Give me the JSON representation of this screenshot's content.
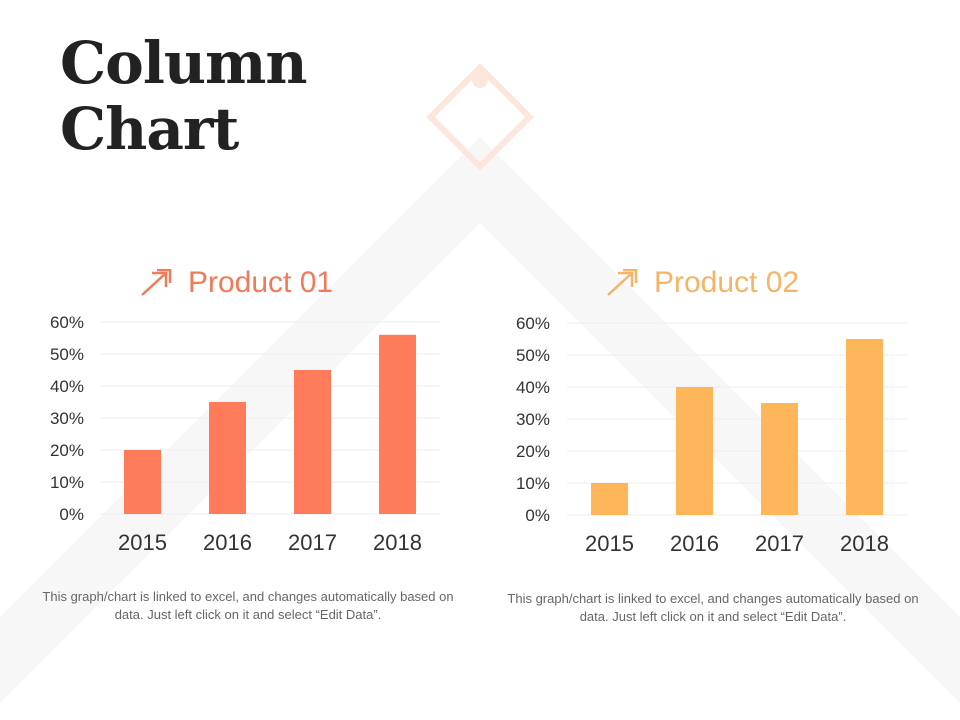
{
  "title_line1": "Column",
  "title_line2": "Chart",
  "caption": "This graph/chart is linked to excel, and changes automatically based on data. Just left click on it and select “Edit Data”.",
  "chart_data": [
    {
      "type": "bar",
      "title": "Product 01",
      "icon": "double-arrow-up-right-icon",
      "color": "#FF7B5A",
      "categories": [
        "2015",
        "2016",
        "2017",
        "2018"
      ],
      "values": [
        20,
        35,
        45,
        56
      ],
      "ylim": [
        0,
        60
      ],
      "yticks": [
        "0%",
        "10%",
        "20%",
        "30%",
        "40%",
        "50%",
        "60%"
      ],
      "grid": true
    },
    {
      "type": "bar",
      "title": "Product 02",
      "icon": "double-arrow-up-right-icon",
      "color": "#FFB55A",
      "categories": [
        "2015",
        "2016",
        "2017",
        "2018"
      ],
      "values": [
        10,
        40,
        35,
        55
      ],
      "ylim": [
        0,
        60
      ],
      "yticks": [
        "0%",
        "10%",
        "20%",
        "30%",
        "40%",
        "50%",
        "60%"
      ],
      "grid": true
    }
  ]
}
